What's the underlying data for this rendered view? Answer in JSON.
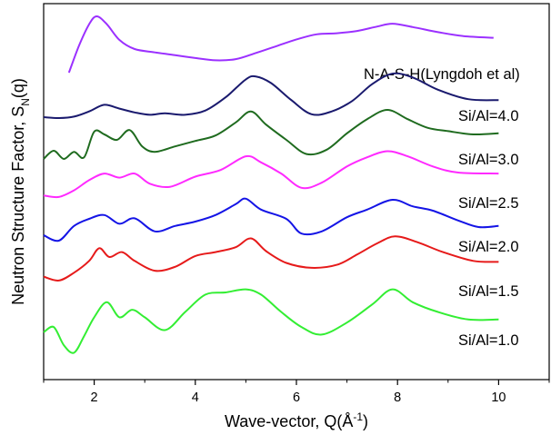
{
  "chart_data": {
    "type": "line",
    "title": "",
    "xlabel": "Wave-vector, Q(Å",
    "xlabel_sup": "-1",
    "xlabel_close": ")",
    "ylabel": "Neutron Structure Factor, S",
    "ylabel_sub": "N",
    "ylabel_close": "(q)",
    "xlim": [
      1,
      11
    ],
    "x_ticks": [
      2,
      4,
      6,
      8,
      10
    ],
    "y_ticks_shown": false,
    "layout": "vertically offset stack",
    "series": [
      {
        "name": "N-A-S-H(Lyngdoh et al)",
        "color": "#9b30ff",
        "points": [
          [
            1.5,
            0.0
          ],
          [
            1.7,
            0.48
          ],
          [
            1.9,
            0.86
          ],
          [
            2.05,
            1.0
          ],
          [
            2.25,
            0.86
          ],
          [
            2.5,
            0.58
          ],
          [
            2.8,
            0.42
          ],
          [
            3.2,
            0.36
          ],
          [
            3.6,
            0.31
          ],
          [
            4.0,
            0.26
          ],
          [
            4.4,
            0.22
          ],
          [
            4.8,
            0.24
          ],
          [
            5.2,
            0.35
          ],
          [
            5.6,
            0.47
          ],
          [
            6.0,
            0.59
          ],
          [
            6.4,
            0.68
          ],
          [
            6.8,
            0.7
          ],
          [
            7.2,
            0.74
          ],
          [
            7.6,
            0.82
          ],
          [
            7.9,
            0.87
          ],
          [
            8.3,
            0.81
          ],
          [
            8.8,
            0.72
          ],
          [
            9.3,
            0.65
          ],
          [
            9.9,
            0.62
          ]
        ]
      },
      {
        "name": "Si/Al=4.0",
        "color": "#1a1a6e",
        "points": [
          [
            1.0,
            0.02
          ],
          [
            1.3,
            0.0
          ],
          [
            1.6,
            0.03
          ],
          [
            1.9,
            0.14
          ],
          [
            2.2,
            0.28
          ],
          [
            2.5,
            0.2
          ],
          [
            2.8,
            0.12
          ],
          [
            3.1,
            0.07
          ],
          [
            3.4,
            0.1
          ],
          [
            3.8,
            0.07
          ],
          [
            4.2,
            0.16
          ],
          [
            4.6,
            0.44
          ],
          [
            5.0,
            0.82
          ],
          [
            5.2,
            0.88
          ],
          [
            5.5,
            0.74
          ],
          [
            5.9,
            0.38
          ],
          [
            6.3,
            0.08
          ],
          [
            6.7,
            0.14
          ],
          [
            7.1,
            0.36
          ],
          [
            7.5,
            0.72
          ],
          [
            7.9,
            0.94
          ],
          [
            8.3,
            0.86
          ],
          [
            8.8,
            0.6
          ],
          [
            9.4,
            0.4
          ],
          [
            10.0,
            0.38
          ]
        ]
      },
      {
        "name": "Si/Al=3.0",
        "color": "#1f6b1f",
        "points": [
          [
            1.0,
            0.05
          ],
          [
            1.2,
            0.2
          ],
          [
            1.4,
            0.05
          ],
          [
            1.6,
            0.18
          ],
          [
            1.8,
            0.08
          ],
          [
            2.0,
            0.55
          ],
          [
            2.2,
            0.5
          ],
          [
            2.45,
            0.4
          ],
          [
            2.7,
            0.58
          ],
          [
            2.95,
            0.28
          ],
          [
            3.2,
            0.18
          ],
          [
            3.6,
            0.28
          ],
          [
            4.0,
            0.38
          ],
          [
            4.4,
            0.48
          ],
          [
            4.8,
            0.72
          ],
          [
            5.1,
            0.92
          ],
          [
            5.4,
            0.68
          ],
          [
            5.8,
            0.4
          ],
          [
            6.2,
            0.14
          ],
          [
            6.6,
            0.22
          ],
          [
            7.0,
            0.52
          ],
          [
            7.4,
            0.78
          ],
          [
            7.8,
            0.95
          ],
          [
            8.2,
            0.78
          ],
          [
            8.6,
            0.62
          ],
          [
            9.0,
            0.56
          ],
          [
            9.5,
            0.5
          ],
          [
            10.0,
            0.52
          ]
        ]
      },
      {
        "name": "Si/Al=2.5",
        "color": "#ff2aff",
        "points": [
          [
            1.0,
            0.05
          ],
          [
            1.3,
            0.02
          ],
          [
            1.6,
            0.15
          ],
          [
            1.9,
            0.35
          ],
          [
            2.2,
            0.48
          ],
          [
            2.5,
            0.4
          ],
          [
            2.8,
            0.48
          ],
          [
            3.1,
            0.28
          ],
          [
            3.5,
            0.22
          ],
          [
            4.0,
            0.42
          ],
          [
            4.5,
            0.55
          ],
          [
            5.0,
            0.82
          ],
          [
            5.3,
            0.7
          ],
          [
            5.7,
            0.48
          ],
          [
            6.1,
            0.2
          ],
          [
            6.5,
            0.3
          ],
          [
            7.0,
            0.62
          ],
          [
            7.4,
            0.8
          ],
          [
            7.8,
            0.92
          ],
          [
            8.2,
            0.82
          ],
          [
            8.7,
            0.62
          ],
          [
            9.2,
            0.5
          ],
          [
            10.0,
            0.48
          ]
        ]
      },
      {
        "name": "Si/Al=2.0",
        "color": "#1414e6",
        "points": [
          [
            1.0,
            0.15
          ],
          [
            1.3,
            0.05
          ],
          [
            1.6,
            0.32
          ],
          [
            1.9,
            0.45
          ],
          [
            2.2,
            0.52
          ],
          [
            2.5,
            0.36
          ],
          [
            2.8,
            0.46
          ],
          [
            3.2,
            0.22
          ],
          [
            3.6,
            0.32
          ],
          [
            4.0,
            0.4
          ],
          [
            4.4,
            0.52
          ],
          [
            4.8,
            0.72
          ],
          [
            5.0,
            0.82
          ],
          [
            5.3,
            0.62
          ],
          [
            5.8,
            0.45
          ],
          [
            6.1,
            0.18
          ],
          [
            6.5,
            0.22
          ],
          [
            7.0,
            0.48
          ],
          [
            7.4,
            0.62
          ],
          [
            7.9,
            0.8
          ],
          [
            8.3,
            0.68
          ],
          [
            8.7,
            0.6
          ],
          [
            9.2,
            0.42
          ],
          [
            9.6,
            0.3
          ],
          [
            10.0,
            0.32
          ]
        ]
      },
      {
        "name": "Si/Al=1.5",
        "color": "#e61a1a",
        "points": [
          [
            1.0,
            0.1
          ],
          [
            1.3,
            0.02
          ],
          [
            1.6,
            0.18
          ],
          [
            1.9,
            0.42
          ],
          [
            2.1,
            0.68
          ],
          [
            2.3,
            0.5
          ],
          [
            2.55,
            0.6
          ],
          [
            2.8,
            0.42
          ],
          [
            3.2,
            0.22
          ],
          [
            3.6,
            0.3
          ],
          [
            4.0,
            0.52
          ],
          [
            4.4,
            0.6
          ],
          [
            4.8,
            0.7
          ],
          [
            5.1,
            0.88
          ],
          [
            5.4,
            0.62
          ],
          [
            5.8,
            0.38
          ],
          [
            6.3,
            0.28
          ],
          [
            6.8,
            0.34
          ],
          [
            7.2,
            0.55
          ],
          [
            7.6,
            0.78
          ],
          [
            7.95,
            0.92
          ],
          [
            8.4,
            0.8
          ],
          [
            8.9,
            0.6
          ],
          [
            9.5,
            0.42
          ],
          [
            10.0,
            0.4
          ]
        ]
      },
      {
        "name": "Si/Al=1.0",
        "color": "#33ee33",
        "points": [
          [
            1.0,
            0.35
          ],
          [
            1.2,
            0.42
          ],
          [
            1.4,
            0.18
          ],
          [
            1.6,
            0.08
          ],
          [
            1.8,
            0.3
          ],
          [
            2.0,
            0.55
          ],
          [
            2.25,
            0.75
          ],
          [
            2.5,
            0.55
          ],
          [
            2.75,
            0.65
          ],
          [
            3.0,
            0.55
          ],
          [
            3.4,
            0.38
          ],
          [
            3.8,
            0.62
          ],
          [
            4.2,
            0.85
          ],
          [
            4.6,
            0.88
          ],
          [
            5.0,
            0.92
          ],
          [
            5.3,
            0.85
          ],
          [
            5.7,
            0.62
          ],
          [
            6.1,
            0.42
          ],
          [
            6.5,
            0.32
          ],
          [
            7.0,
            0.48
          ],
          [
            7.5,
            0.72
          ],
          [
            7.9,
            0.92
          ],
          [
            8.3,
            0.75
          ],
          [
            8.8,
            0.62
          ],
          [
            9.4,
            0.52
          ],
          [
            10.0,
            0.52
          ]
        ]
      }
    ]
  }
}
